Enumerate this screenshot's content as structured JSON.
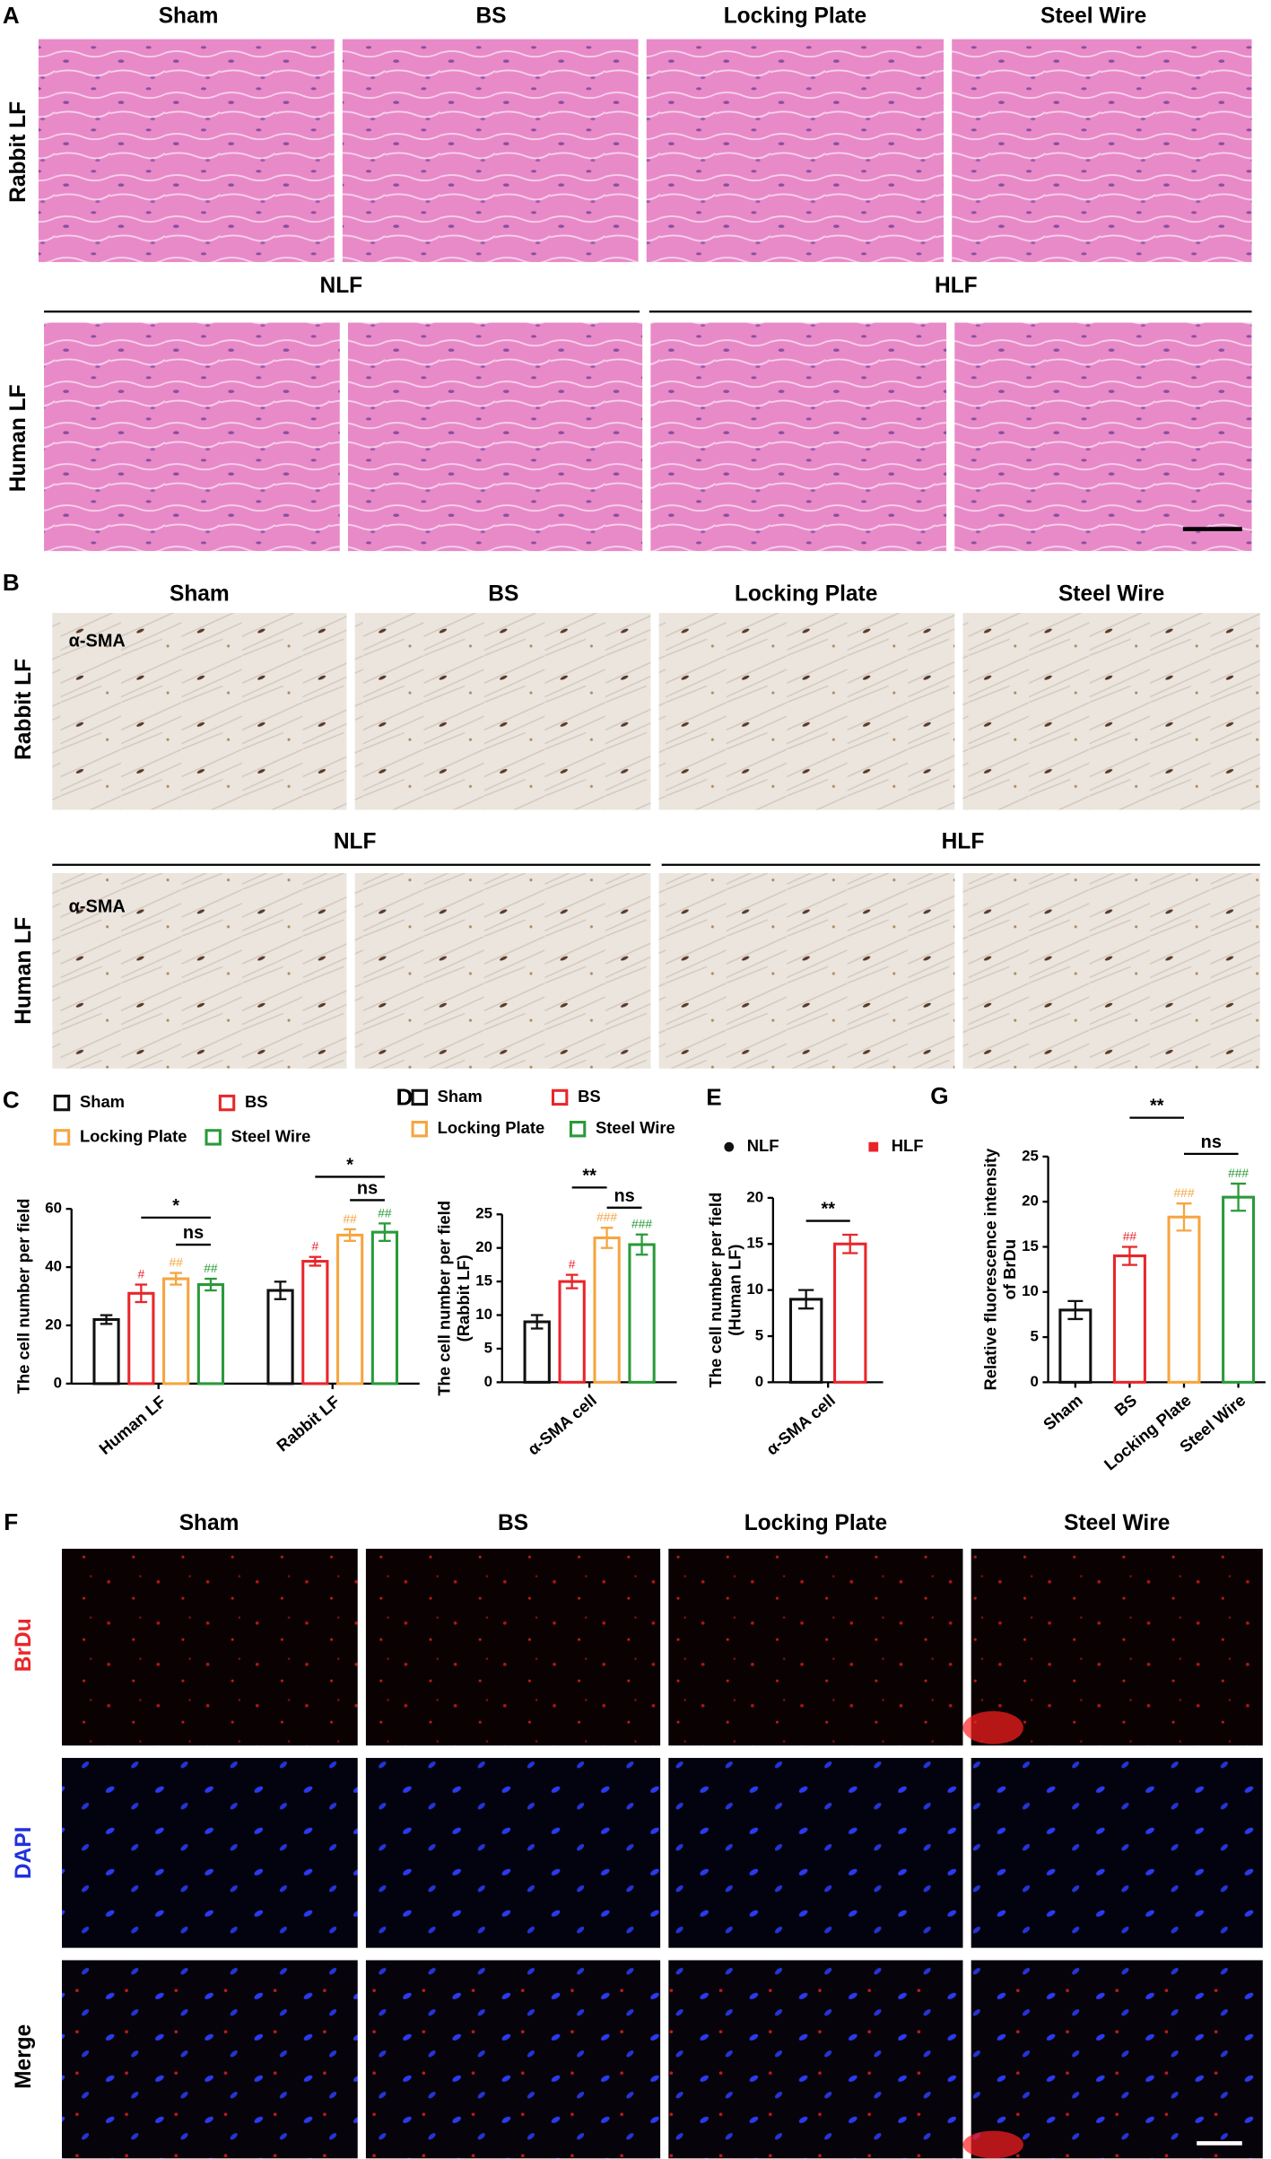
{
  "panels": {
    "A": {
      "label": "A",
      "columns": [
        "Sham",
        "BS",
        "Locking Plate",
        "Steel Wire"
      ],
      "row_labels": [
        "Rabbit LF",
        "Human LF"
      ],
      "groups": [
        "NLF",
        "HLF"
      ]
    },
    "B": {
      "label": "B",
      "columns": [
        "Sham",
        "BS",
        "Locking Plate",
        "Steel Wire"
      ],
      "row_labels": [
        "Rabbit LF",
        "Human LF"
      ],
      "groups": [
        "NLF",
        "HLF"
      ],
      "stain": "α-SMA"
    },
    "F": {
      "label": "F",
      "columns": [
        "Sham",
        "BS",
        "Locking Plate",
        "Steel Wire"
      ],
      "row_labels": [
        "BrDu",
        "DAPI",
        "Merge"
      ]
    }
  },
  "chart_data": [
    {
      "type": "bar",
      "panel_label": "C",
      "ylabel": [
        "The cell number per field"
      ],
      "categories": [
        "Human LF",
        "Rabbit  LF"
      ],
      "series": [
        {
          "name": "Sham",
          "color": "#111111",
          "values": [
            22,
            32
          ],
          "errors": [
            1.5,
            3
          ]
        },
        {
          "name": "BS",
          "color": "#e8262a",
          "values": [
            31,
            42
          ],
          "errors": [
            3,
            1.5
          ],
          "markers": [
            "#",
            "#"
          ]
        },
        {
          "name": "Locking Plate",
          "color": "#f6a540",
          "values": [
            36,
            51
          ],
          "errors": [
            2,
            2
          ],
          "markers": [
            "##",
            "##"
          ]
        },
        {
          "name": "Steel Wire",
          "color": "#2a9a3a",
          "values": [
            34,
            52
          ],
          "errors": [
            2,
            3
          ],
          "markers": [
            "##",
            "##"
          ]
        }
      ],
      "significance": [
        [
          "*",
          "ns"
        ],
        [
          "*",
          "ns"
        ]
      ],
      "ylim": [
        0,
        60
      ],
      "yticks": [
        0,
        20,
        40,
        60
      ]
    },
    {
      "type": "bar",
      "panel_label": "D",
      "ylabel": [
        "The cell number per field",
        "(Rabbit LF)"
      ],
      "categories": [
        "α-SMA cell"
      ],
      "series": [
        {
          "name": "Sham",
          "color": "#111111",
          "values": [
            9
          ],
          "errors": [
            1
          ]
        },
        {
          "name": "BS",
          "color": "#e8262a",
          "values": [
            15
          ],
          "errors": [
            1
          ],
          "markers": [
            "#"
          ]
        },
        {
          "name": "Locking Plate",
          "color": "#f6a540",
          "values": [
            21.5
          ],
          "errors": [
            1.5
          ],
          "markers": [
            "###"
          ]
        },
        {
          "name": "Steel Wire",
          "color": "#2a9a3a",
          "values": [
            20.5
          ],
          "errors": [
            1.5
          ],
          "markers": [
            "###"
          ]
        }
      ],
      "significance": [
        "**",
        "ns"
      ],
      "ylim": [
        0,
        25
      ],
      "yticks": [
        0,
        5,
        10,
        15,
        20,
        25
      ]
    },
    {
      "type": "bar",
      "panel_label": "E",
      "ylabel": [
        "The cell number per field",
        "(Human LF)"
      ],
      "categories": [
        "α-SMA cell"
      ],
      "series": [
        {
          "name": "NLF",
          "color": "#111111",
          "marker": "circle",
          "values": [
            9
          ],
          "errors": [
            1
          ]
        },
        {
          "name": "HLF",
          "color": "#e8262a",
          "marker": "square",
          "values": [
            15
          ],
          "errors": [
            1
          ]
        }
      ],
      "significance": [
        "**"
      ],
      "ylim": [
        0,
        20
      ],
      "yticks": [
        0,
        5,
        10,
        15,
        20
      ]
    },
    {
      "type": "bar",
      "panel_label": "G",
      "ylabel": [
        "Relative fluorescence intensity",
        "of BrDu"
      ],
      "categories": [
        "Sham",
        "BS",
        "Locking Plate",
        "Steel Wire"
      ],
      "values": [
        8,
        14,
        18.3,
        20.5
      ],
      "errors": [
        1,
        1,
        1.5,
        1.5
      ],
      "colors": [
        "#111111",
        "#e8262a",
        "#f6a540",
        "#2a9a3a"
      ],
      "markers": [
        null,
        "##",
        "###",
        "###"
      ],
      "significance": [
        "**",
        "ns"
      ],
      "ylim": [
        0,
        25
      ],
      "yticks": [
        0,
        5,
        10,
        15,
        20,
        25
      ]
    }
  ]
}
